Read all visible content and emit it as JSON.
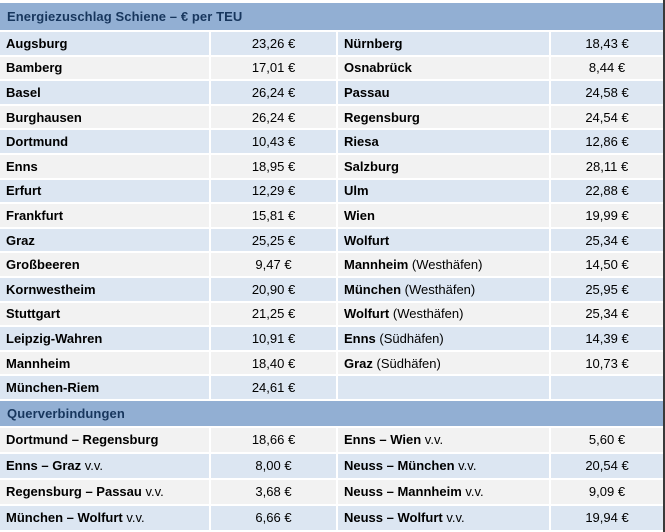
{
  "title": "Energiezuschlag Schiene – € per TEU",
  "section2_title": "Querverbindungen",
  "colors": {
    "header_bg": "#92afd3",
    "header_text": "#17365d",
    "row_blue": "#dce6f2",
    "row_gray": "#f2f2f2",
    "body_text": "#000000",
    "right_border": "#3a3a3a"
  },
  "main_rows": [
    {
      "left_name": "Augsburg",
      "left_suffix": "",
      "left_value": "23,26 €",
      "right_name": "Nürnberg",
      "right_suffix": "",
      "right_value": "18,43 €"
    },
    {
      "left_name": "Bamberg",
      "left_suffix": "",
      "left_value": "17,01 €",
      "right_name": "Osnabrück",
      "right_suffix": "",
      "right_value": "8,44 €"
    },
    {
      "left_name": "Basel",
      "left_suffix": "",
      "left_value": "26,24 €",
      "right_name": "Passau",
      "right_suffix": "",
      "right_value": "24,58 €"
    },
    {
      "left_name": "Burghausen",
      "left_suffix": "",
      "left_value": "26,24 €",
      "right_name": "Regensburg",
      "right_suffix": "",
      "right_value": "24,54 €"
    },
    {
      "left_name": "Dortmund",
      "left_suffix": "",
      "left_value": "10,43 €",
      "right_name": "Riesa",
      "right_suffix": "",
      "right_value": "12,86 €"
    },
    {
      "left_name": "Enns",
      "left_suffix": "",
      "left_value": "18,95 €",
      "right_name": "Salzburg",
      "right_suffix": "",
      "right_value": "28,11 €"
    },
    {
      "left_name": "Erfurt",
      "left_suffix": "",
      "left_value": "12,29 €",
      "right_name": "Ulm",
      "right_suffix": "",
      "right_value": "22,88 €"
    },
    {
      "left_name": "Frankfurt",
      "left_suffix": "",
      "left_value": "15,81 €",
      "right_name": "Wien",
      "right_suffix": "",
      "right_value": "19,99 €"
    },
    {
      "left_name": "Graz",
      "left_suffix": "",
      "left_value": "25,25 €",
      "right_name": "Wolfurt",
      "right_suffix": "",
      "right_value": "25,34 €"
    },
    {
      "left_name": "Großbeeren",
      "left_suffix": "",
      "left_value": "9,47 €",
      "right_name": "Mannheim",
      "right_suffix": " (Westhäfen)",
      "right_value": "14,50 €"
    },
    {
      "left_name": "Kornwestheim",
      "left_suffix": "",
      "left_value": "20,90 €",
      "right_name": "München",
      "right_suffix": " (Westhäfen)",
      "right_value": "25,95 €"
    },
    {
      "left_name": "Stuttgart",
      "left_suffix": "",
      "left_value": "21,25 €",
      "right_name": "Wolfurt",
      "right_suffix": " (Westhäfen)",
      "right_value": "25,34 €"
    },
    {
      "left_name": "Leipzig-Wahren",
      "left_suffix": "",
      "left_value": "10,91 €",
      "right_name": "Enns",
      "right_suffix": " (Südhäfen)",
      "right_value": "14,39 €"
    },
    {
      "left_name": "Mannheim",
      "left_suffix": "",
      "left_value": "18,40 €",
      "right_name": "Graz",
      "right_suffix": " (Südhäfen)",
      "right_value": "10,73 €"
    },
    {
      "left_name": "München-Riem",
      "left_suffix": "",
      "left_value": "24,61 €",
      "right_name": "",
      "right_suffix": "",
      "right_value": ""
    }
  ],
  "cross_rows": [
    {
      "left_name": "Dortmund – Regensburg",
      "left_suffix": "",
      "left_value": "18,66 €",
      "right_name": "Enns – Wien",
      "right_suffix": " v.v.",
      "right_value": "5,60 €"
    },
    {
      "left_name": "Enns – Graz",
      "left_suffix": " v.v.",
      "left_value": "8,00 €",
      "right_name": "Neuss – München",
      "right_suffix": " v.v.",
      "right_value": "20,54 €"
    },
    {
      "left_name": "Regensburg – Passau",
      "left_suffix": " v.v.",
      "left_value": "3,68 €",
      "right_name": "Neuss – Mannheim",
      "right_suffix": " v.v.",
      "right_value": "9,09 €"
    },
    {
      "left_name": "München – Wolfurt",
      "left_suffix": " v.v.",
      "left_value": "6,66 €",
      "right_name": "Neuss – Wolfurt",
      "right_suffix": " v.v.",
      "right_value": "19,94 €"
    }
  ]
}
